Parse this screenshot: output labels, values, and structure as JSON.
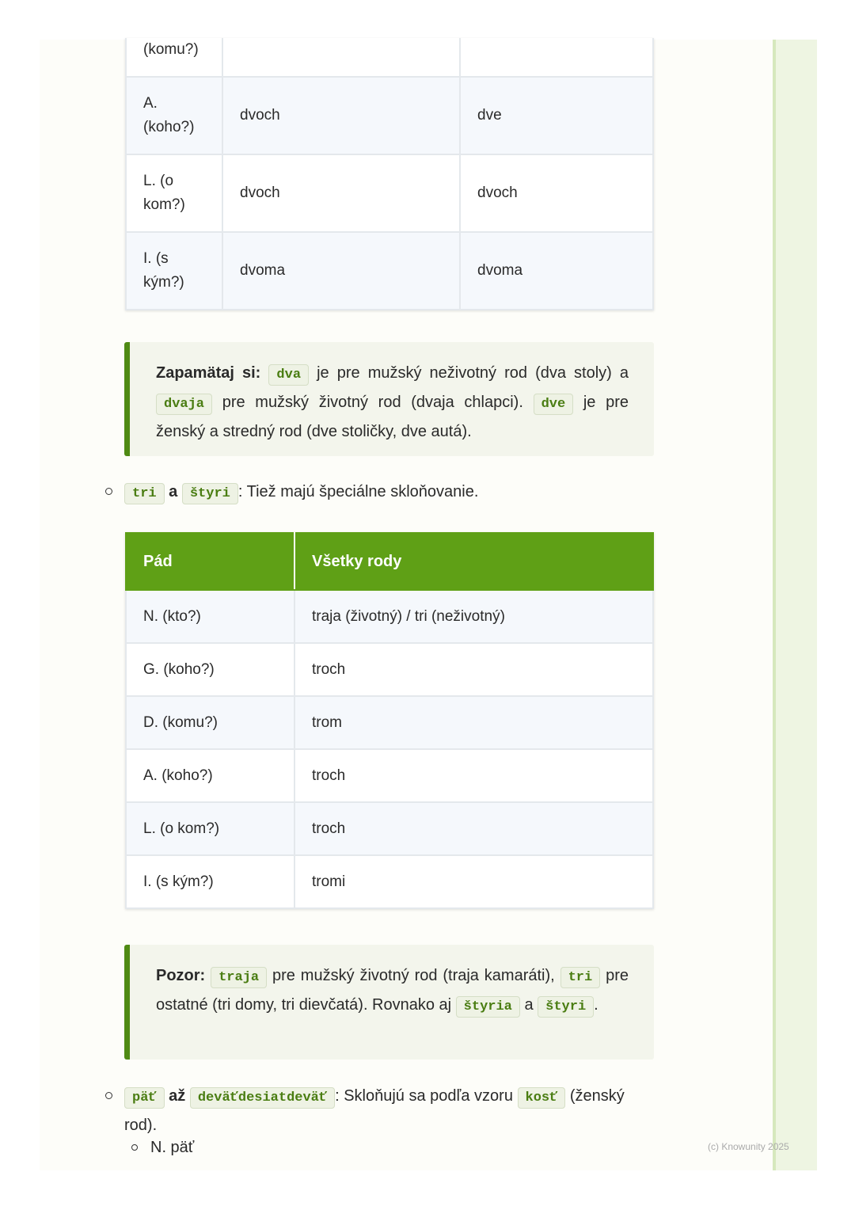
{
  "table1": {
    "rows": [
      [
        "(komu?)",
        "",
        ""
      ],
      [
        "A. (koho?)",
        "dvoch",
        "dve"
      ],
      [
        "L. (o kom?)",
        "dvoch",
        "dvoch"
      ],
      [
        "I. (s kým?)",
        "dvoma",
        "dvoma"
      ]
    ]
  },
  "callout1": {
    "label": "Zapamätaj si:",
    "code1": "dva",
    "text1": " je pre mužský neživotný rod (dva stoly) a ",
    "code2": "dvaja",
    "text2": " pre mužský životný rod (dvaja chlapci). ",
    "code3": "dve",
    "text3": " je pre ženský a stredný rod (dve stoličky, dve autá)."
  },
  "bullet1": {
    "code1": "tri",
    "bold": " a ",
    "code2": "štyri",
    "text": ": Tiež majú špeciálne skloňovanie."
  },
  "table2": {
    "headers": [
      "Pád",
      "Všetky rody"
    ],
    "rows": [
      [
        "N. (kto?)",
        "traja (životný) / tri (neživotný)"
      ],
      [
        "G. (koho?)",
        "troch"
      ],
      [
        "D. (komu?)",
        "trom"
      ],
      [
        "A. (koho?)",
        "troch"
      ],
      [
        "L. (o kom?)",
        "troch"
      ],
      [
        "I. (s kým?)",
        "tromi"
      ]
    ]
  },
  "callout2": {
    "label": "Pozor:",
    "code1": "traja",
    "text1": " pre mužský životný rod (traja kamaráti), ",
    "code2": "tri",
    "text2": " pre ostatné (tri domy, tri dievčatá). Rovnako aj ",
    "code3": "štyria",
    "text3": " a ",
    "code4": "štyri",
    "text4": "."
  },
  "bullet2": {
    "code1": "päť",
    "bold": " až ",
    "code2": "deväťdesiatdeväť",
    "text1": ": Skloňujú sa podľa vzoru ",
    "code3": "kosť",
    "text2": " (ženský rod)."
  },
  "sub_bullet": "N. päť",
  "copyright": "(c) Knowunity 2025",
  "colors": {
    "accent": "#5fa016",
    "callout_border": "#4f8a14",
    "code_text": "#4a7d12"
  }
}
